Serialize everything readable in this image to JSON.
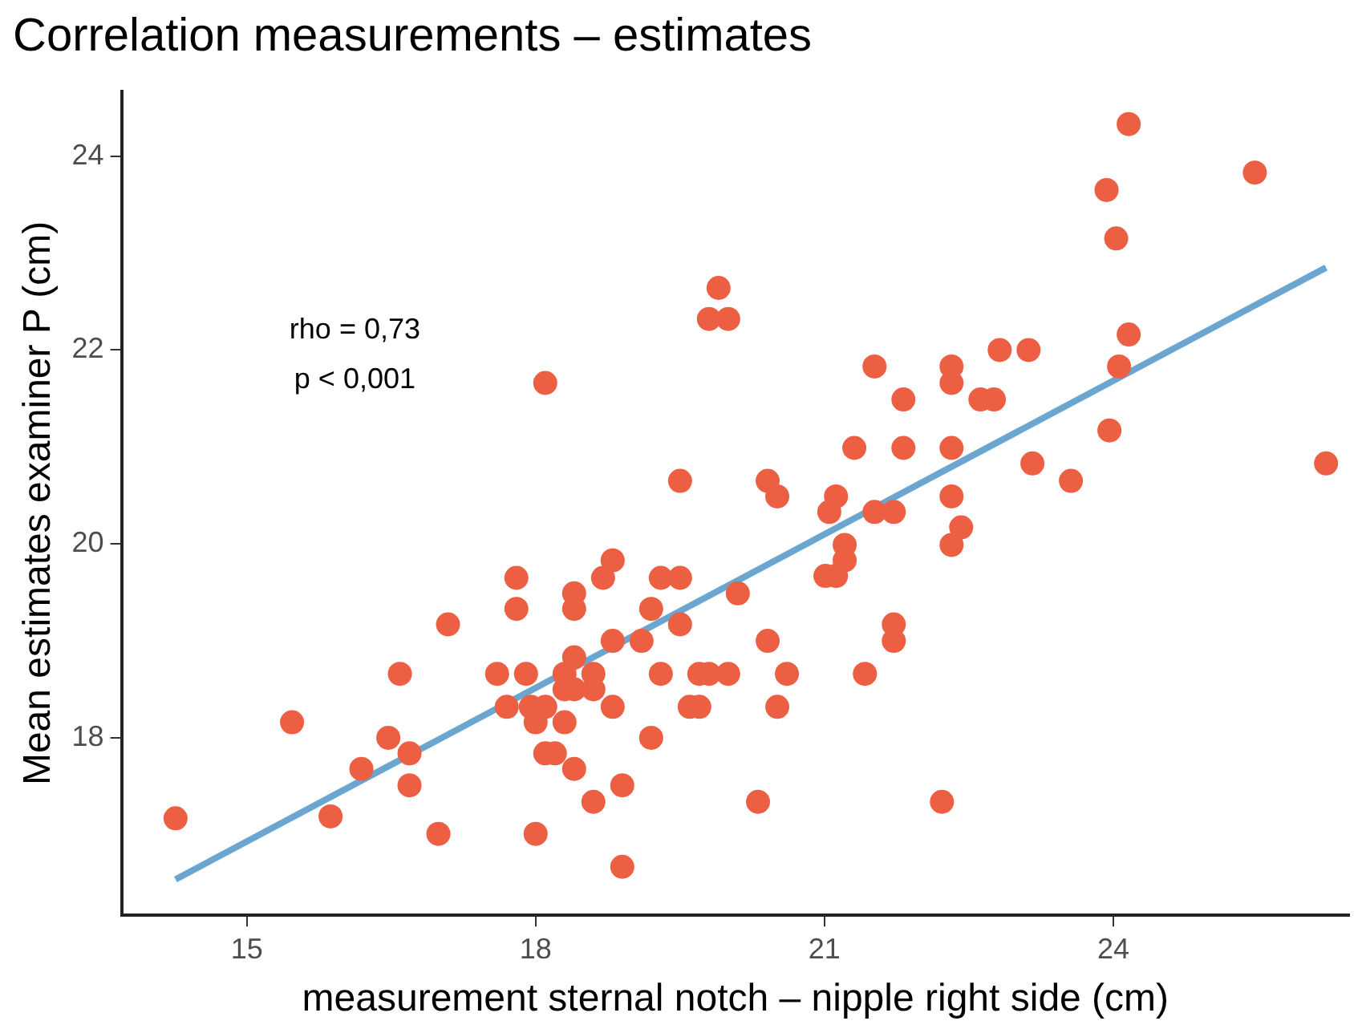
{
  "chart_data": {
    "type": "scatter",
    "title": "Correlation measurements – estimates",
    "xlabel": "measurement sternal notch – nipple right side (cm)",
    "ylabel": "Mean estimates examiner P (cm)",
    "xlim": [
      13.7,
      26.45
    ],
    "ylim": [
      16.17,
      24.67
    ],
    "xticks": [
      15,
      18,
      21,
      24
    ],
    "yticks": [
      18,
      20,
      22,
      24
    ],
    "grid": false,
    "legend": false,
    "marker": "circle",
    "annotations": [
      "rho = 0,73",
      "p < 0,001"
    ],
    "series": [
      {
        "color": "#ec5f43",
        "x": [
          14.26,
          15.47,
          15.87,
          16.19,
          16.47,
          16.59,
          16.69,
          16.69,
          16.99,
          17.09,
          17.6,
          17.7,
          17.8,
          17.8,
          17.9,
          17.95,
          18.0,
          18.0,
          18.1,
          18.1,
          18.1,
          18.2,
          18.3,
          18.3,
          18.3,
          18.4,
          18.4,
          18.4,
          18.4,
          18.4,
          18.6,
          18.6,
          18.6,
          18.7,
          18.8,
          18.8,
          18.8,
          18.9,
          18.9,
          19.1,
          19.2,
          19.2,
          19.3,
          19.3,
          19.5,
          19.5,
          19.5,
          19.6,
          19.7,
          19.7,
          19.8,
          19.8,
          19.9,
          20.0,
          20.0,
          20.1,
          20.31,
          20.41,
          20.41,
          20.51,
          20.51,
          20.61,
          21.01,
          21.05,
          21.12,
          21.12,
          21.21,
          21.21,
          21.31,
          21.42,
          21.52,
          21.52,
          21.72,
          21.72,
          21.72,
          21.82,
          21.82,
          22.22,
          22.32,
          22.32,
          22.32,
          22.32,
          22.32,
          22.42,
          22.62,
          22.76,
          22.82,
          23.12,
          23.16,
          23.56,
          23.93,
          23.96,
          24.03,
          24.06,
          24.16,
          24.16,
          25.47,
          26.21
        ],
        "values": [
          17.17,
          18.16,
          17.19,
          17.68,
          18.0,
          18.66,
          17.84,
          17.51,
          17.01,
          19.17,
          18.66,
          18.32,
          19.65,
          19.33,
          18.66,
          18.32,
          18.16,
          17.01,
          18.32,
          17.84,
          21.66,
          17.84,
          18.66,
          18.5,
          18.16,
          19.49,
          19.33,
          18.83,
          18.5,
          17.68,
          18.66,
          18.5,
          17.34,
          19.65,
          19.83,
          19.0,
          18.32,
          17.51,
          16.67,
          19.0,
          19.33,
          18.0,
          19.65,
          18.66,
          19.17,
          19.65,
          20.65,
          18.32,
          18.66,
          18.32,
          18.66,
          22.32,
          22.64,
          22.32,
          18.66,
          19.49,
          17.34,
          19.0,
          20.65,
          18.32,
          20.49,
          18.66,
          19.67,
          20.33,
          20.49,
          19.67,
          19.83,
          19.99,
          20.99,
          18.66,
          20.33,
          21.83,
          20.33,
          19.0,
          19.17,
          20.99,
          21.49,
          17.34,
          21.83,
          21.66,
          20.99,
          20.49,
          19.99,
          20.17,
          21.49,
          21.49,
          22.0,
          22.0,
          20.83,
          20.65,
          23.65,
          21.17,
          23.15,
          21.83,
          22.16,
          24.33,
          23.83,
          20.83
        ]
      },
      {
        "type": "line",
        "color": "#6aa6d0",
        "x": [
          14.26,
          26.21
        ],
        "values": [
          16.54,
          22.85
        ],
        "marker": "none"
      }
    ]
  }
}
